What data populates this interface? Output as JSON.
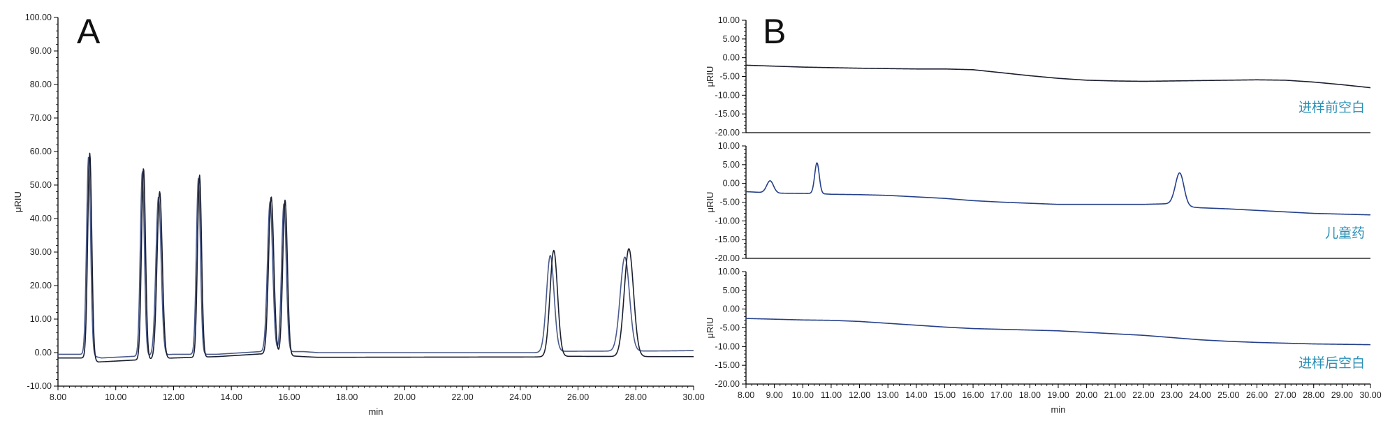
{
  "colors": {
    "trace_dark": "#1b1f2f",
    "trace_blue": "#4a5b8c",
    "trace_navy": "#25408a",
    "trace_label": "#2a8fb5",
    "axis": "#000000"
  },
  "chart_data": [
    {
      "type": "line",
      "panel": "A",
      "xlabel": "min",
      "ylabel": "μRIU",
      "xlim": [
        8,
        30
      ],
      "ylim": [
        -10,
        100
      ],
      "xticks": [
        "8.00",
        "10.00",
        "12.00",
        "14.00",
        "16.00",
        "18.00",
        "20.00",
        "22.00",
        "24.00",
        "26.00",
        "28.00",
        "30.00"
      ],
      "yticks": [
        "-10.00",
        "0.00",
        "10.00",
        "20.00",
        "30.00",
        "40.00",
        "50.00",
        "60.00",
        "70.00",
        "80.00",
        "90.00",
        "100.00"
      ],
      "grid": false,
      "series": [
        {
          "color": "#4a5b8c",
          "baseline": [
            [
              8.0,
              -0.5
            ],
            [
              9.0,
              -0.5
            ],
            [
              9.5,
              -1.6
            ],
            [
              12.0,
              -0.5
            ],
            [
              13.5,
              -0.5
            ],
            [
              15.0,
              0.3
            ],
            [
              16.5,
              0.3
            ],
            [
              17.0,
              0.0
            ],
            [
              24.5,
              0.0
            ],
            [
              25.5,
              0.4
            ],
            [
              29.0,
              0.5
            ],
            [
              30.0,
              0.6
            ]
          ],
          "peaks": [
            [
              9.06,
              58.5,
              0.07
            ],
            [
              10.92,
              54.0,
              0.07
            ],
            [
              11.48,
              46.5,
              0.09
            ],
            [
              12.86,
              52.0,
              0.07
            ],
            [
              15.34,
              45.0,
              0.09
            ],
            [
              15.82,
              44.5,
              0.08
            ],
            [
              25.04,
              29.0,
              0.13
            ],
            [
              27.62,
              28.5,
              0.16
            ]
          ]
        },
        {
          "color": "#1b1f2f",
          "baseline": [
            [
              8.0,
              -1.6
            ],
            [
              9.0,
              -1.6
            ],
            [
              9.4,
              -2.8
            ],
            [
              12.0,
              -1.6
            ],
            [
              13.5,
              -1.2
            ],
            [
              15.0,
              -0.4
            ],
            [
              16.5,
              -1.2
            ],
            [
              17.0,
              -1.4
            ],
            [
              24.5,
              -1.3
            ],
            [
              25.5,
              -1.1
            ],
            [
              29.0,
              -1.2
            ],
            [
              30.0,
              -1.2
            ]
          ],
          "peaks": [
            [
              9.1,
              59.5,
              0.07
            ],
            [
              10.96,
              55.0,
              0.07
            ],
            [
              11.52,
              48.0,
              0.09
            ],
            [
              12.9,
              53.0,
              0.07
            ],
            [
              15.38,
              46.5,
              0.09
            ],
            [
              15.86,
              45.5,
              0.08
            ],
            [
              25.16,
              30.5,
              0.13
            ],
            [
              27.76,
              31.0,
              0.16
            ]
          ]
        }
      ]
    },
    {
      "type": "line",
      "panel": "B",
      "label": "进样前空白",
      "ylabel": "μRIU",
      "xlim": [
        8,
        30
      ],
      "ylim": [
        -20,
        10
      ],
      "yticks": [
        "-20.00",
        "-15.00",
        "-10.00",
        "-5.00",
        "0.00",
        "5.00",
        "10.00"
      ],
      "series": [
        {
          "color": "#1b1f2f",
          "baseline": [
            [
              8.0,
              -2.0
            ],
            [
              10.0,
              -2.5
            ],
            [
              12.0,
              -2.8
            ],
            [
              14.0,
              -3.0
            ],
            [
              15.0,
              -3.0
            ],
            [
              16.0,
              -3.2
            ],
            [
              17.0,
              -4.0
            ],
            [
              18.0,
              -4.8
            ],
            [
              19.0,
              -5.5
            ],
            [
              20.0,
              -6.0
            ],
            [
              21.0,
              -6.2
            ],
            [
              22.0,
              -6.3
            ],
            [
              23.0,
              -6.2
            ],
            [
              24.0,
              -6.1
            ],
            [
              25.0,
              -6.0
            ],
            [
              26.0,
              -5.9
            ],
            [
              27.0,
              -6.0
            ],
            [
              28.0,
              -6.5
            ],
            [
              29.0,
              -7.2
            ],
            [
              30.0,
              -8.0
            ]
          ],
          "peaks": []
        }
      ]
    },
    {
      "type": "line",
      "panel": "B",
      "label": "儿童药",
      "ylabel": "μRIU",
      "xlim": [
        8,
        30
      ],
      "ylim": [
        -20,
        10
      ],
      "yticks": [
        "-20.00",
        "-15.00",
        "-10.00",
        "-5.00",
        "0.00",
        "5.00",
        "10.00"
      ],
      "series": [
        {
          "color": "#25408a",
          "baseline": [
            [
              8.0,
              -2.2
            ],
            [
              8.5,
              -2.4
            ],
            [
              9.0,
              -2.6
            ],
            [
              10.5,
              -2.7
            ],
            [
              11.0,
              -2.9
            ],
            [
              12.0,
              -3.0
            ],
            [
              13.0,
              -3.2
            ],
            [
              14.0,
              -3.6
            ],
            [
              15.0,
              -4.0
            ],
            [
              16.0,
              -4.6
            ],
            [
              17.0,
              -5.0
            ],
            [
              18.0,
              -5.3
            ],
            [
              19.0,
              -5.6
            ],
            [
              20.0,
              -5.6
            ],
            [
              21.0,
              -5.6
            ],
            [
              22.0,
              -5.6
            ],
            [
              23.0,
              -5.4
            ],
            [
              23.5,
              -6.2
            ],
            [
              24.0,
              -6.5
            ],
            [
              25.0,
              -6.8
            ],
            [
              26.0,
              -7.2
            ],
            [
              27.0,
              -7.6
            ],
            [
              28.0,
              -8.0
            ],
            [
              29.0,
              -8.2
            ],
            [
              30.0,
              -8.4
            ]
          ],
          "peaks": [
            [
              8.85,
              0.7,
              0.12
            ],
            [
              10.5,
              5.5,
              0.08
            ],
            [
              23.28,
              2.8,
              0.15
            ]
          ]
        }
      ]
    },
    {
      "type": "line",
      "panel": "B",
      "label": "进样后空白",
      "xlabel": "min",
      "ylabel": "μRIU",
      "xlim": [
        8,
        30
      ],
      "ylim": [
        -20,
        10
      ],
      "xticks": [
        "8.00",
        "9.00",
        "10.00",
        "11.00",
        "12.00",
        "13.00",
        "14.00",
        "15.00",
        "16.00",
        "17.00",
        "18.00",
        "19.00",
        "20.00",
        "21.00",
        "22.00",
        "23.00",
        "24.00",
        "25.00",
        "26.00",
        "27.00",
        "28.00",
        "29.00",
        "30.00"
      ],
      "yticks": [
        "-20.00",
        "-15.00",
        "-10.00",
        "-5.00",
        "0.00",
        "5.00",
        "10.00"
      ],
      "series": [
        {
          "color": "#25408a",
          "baseline": [
            [
              8.0,
              -2.5
            ],
            [
              9.0,
              -2.7
            ],
            [
              10.0,
              -2.9
            ],
            [
              11.0,
              -3.0
            ],
            [
              12.0,
              -3.3
            ],
            [
              13.0,
              -3.8
            ],
            [
              14.0,
              -4.3
            ],
            [
              15.0,
              -4.8
            ],
            [
              16.0,
              -5.2
            ],
            [
              17.0,
              -5.4
            ],
            [
              18.0,
              -5.6
            ],
            [
              19.0,
              -5.8
            ],
            [
              20.0,
              -6.2
            ],
            [
              21.0,
              -6.6
            ],
            [
              22.0,
              -7.0
            ],
            [
              23.0,
              -7.6
            ],
            [
              24.0,
              -8.2
            ],
            [
              25.0,
              -8.6
            ],
            [
              26.0,
              -8.9
            ],
            [
              27.0,
              -9.1
            ],
            [
              28.0,
              -9.3
            ],
            [
              29.0,
              -9.4
            ],
            [
              30.0,
              -9.5
            ]
          ],
          "peaks": []
        }
      ]
    }
  ]
}
